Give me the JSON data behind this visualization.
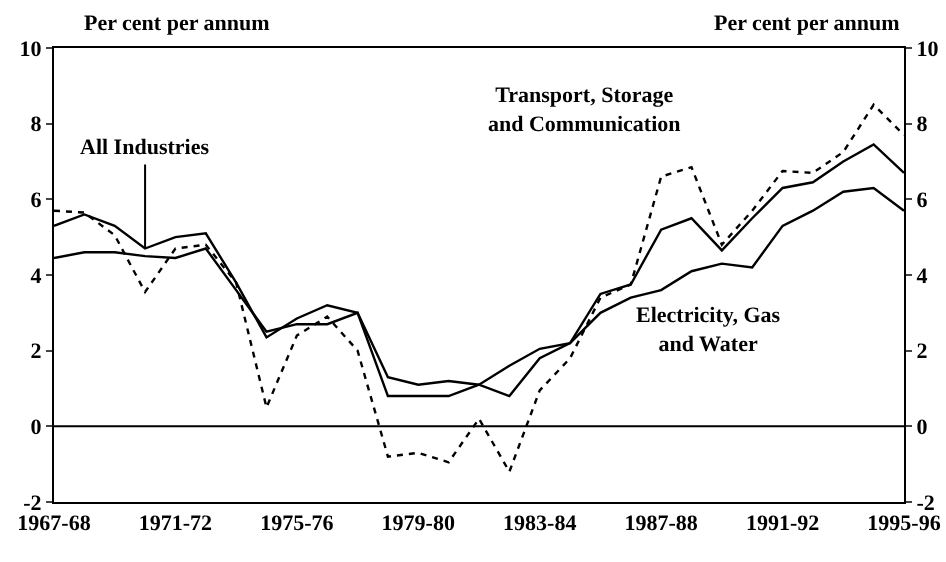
{
  "chart_data": {
    "type": "line",
    "categories": [
      "1967-68",
      null,
      null,
      null,
      "1971-72",
      null,
      null,
      null,
      "1975-76",
      null,
      null,
      null,
      "1979-80",
      null,
      null,
      null,
      "1983-84",
      null,
      null,
      null,
      "1987-88",
      null,
      null,
      null,
      "1991-92",
      null,
      null,
      null,
      "1995-96"
    ],
    "series": [
      {
        "name": "All Industries",
        "color": "#000000",
        "line_style": "solid",
        "values": [
          5.3,
          5.6,
          5.3,
          4.7,
          5.0,
          5.1,
          3.8,
          2.35,
          2.85,
          3.2,
          3.0,
          1.3,
          1.1,
          1.2,
          1.1,
          0.8,
          1.8,
          2.2,
          3.5,
          3.75,
          5.2,
          5.5,
          4.65,
          5.5,
          6.3,
          6.45,
          7.0,
          7.45,
          6.7
        ]
      },
      {
        "name": "Electricity, Gas and Water",
        "color": "#000000",
        "line_style": "solid",
        "values": [
          4.45,
          4.6,
          4.6,
          4.5,
          4.45,
          4.7,
          3.6,
          2.5,
          2.7,
          2.7,
          3.0,
          0.8,
          0.8,
          0.8,
          1.1,
          1.6,
          2.05,
          2.2,
          3.0,
          3.4,
          3.6,
          4.1,
          4.3,
          4.2,
          5.3,
          5.7,
          6.2,
          6.3,
          5.7
        ]
      },
      {
        "name": "Transport, Storage and Communication",
        "color": "#000000",
        "line_style": "dotted",
        "values": [
          5.7,
          5.65,
          5.05,
          3.55,
          4.7,
          4.8,
          3.8,
          0.5,
          2.4,
          2.9,
          2.0,
          -0.8,
          -0.7,
          -0.95,
          0.2,
          -1.2,
          0.95,
          1.8,
          3.4,
          3.75,
          6.6,
          6.85,
          4.8,
          5.7,
          6.75,
          6.7,
          7.25,
          8.5,
          7.7
        ]
      }
    ],
    "ylabel": "Per cent per annum",
    "y2label": "Per cent per annum",
    "ylim": [
      -2,
      10
    ],
    "yticks": [
      -2,
      0,
      2,
      4,
      6,
      8,
      10
    ],
    "y2lim": [
      -2,
      10
    ],
    "y2ticks": [
      -2,
      0,
      2,
      4,
      6,
      8,
      10
    ],
    "ref_lines": [
      {
        "axis": "y",
        "value": 0,
        "color": "#000000",
        "line_style": "solid"
      }
    ],
    "grid": false,
    "legend": false,
    "marker": "none"
  }
}
